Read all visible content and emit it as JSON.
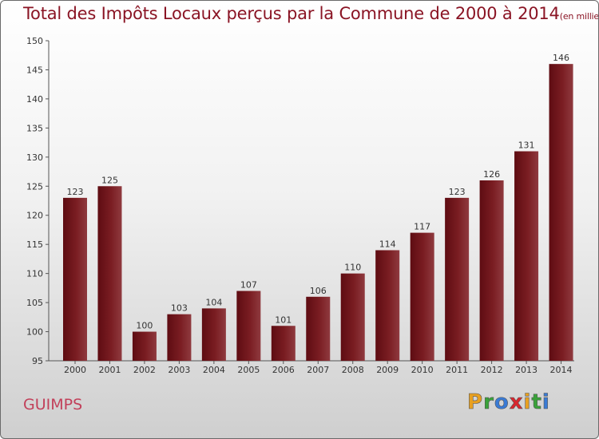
{
  "chart_data": {
    "type": "bar",
    "title": "Total des Impôts Locaux perçus par la Commune de 2000 à 2014",
    "title_unit": "(en milliers d'€)",
    "categories": [
      "2000",
      "2001",
      "2002",
      "2003",
      "2004",
      "2005",
      "2006",
      "2007",
      "2008",
      "2009",
      "2010",
      "2011",
      "2012",
      "2013",
      "2014"
    ],
    "values": [
      123,
      125,
      100,
      103,
      104,
      107,
      101,
      106,
      110,
      114,
      117,
      123,
      126,
      131,
      146
    ],
    "ylim": [
      95,
      150
    ],
    "yticks": [
      95,
      100,
      105,
      110,
      115,
      120,
      125,
      130,
      135,
      140,
      145,
      150
    ],
    "xlabel": "",
    "ylabel": "",
    "bar_color": "#7a1d22",
    "grid": false
  },
  "footer": {
    "commune": "GUIMPS",
    "logo_letters": [
      "P",
      "r",
      "o",
      "x",
      "i",
      "t",
      "i"
    ],
    "logo_colors": [
      "#e8a020",
      "#3aa23a",
      "#3a7bd5",
      "#d8262e",
      "#e8a020",
      "#3aa23a",
      "#3a7bd5"
    ]
  }
}
